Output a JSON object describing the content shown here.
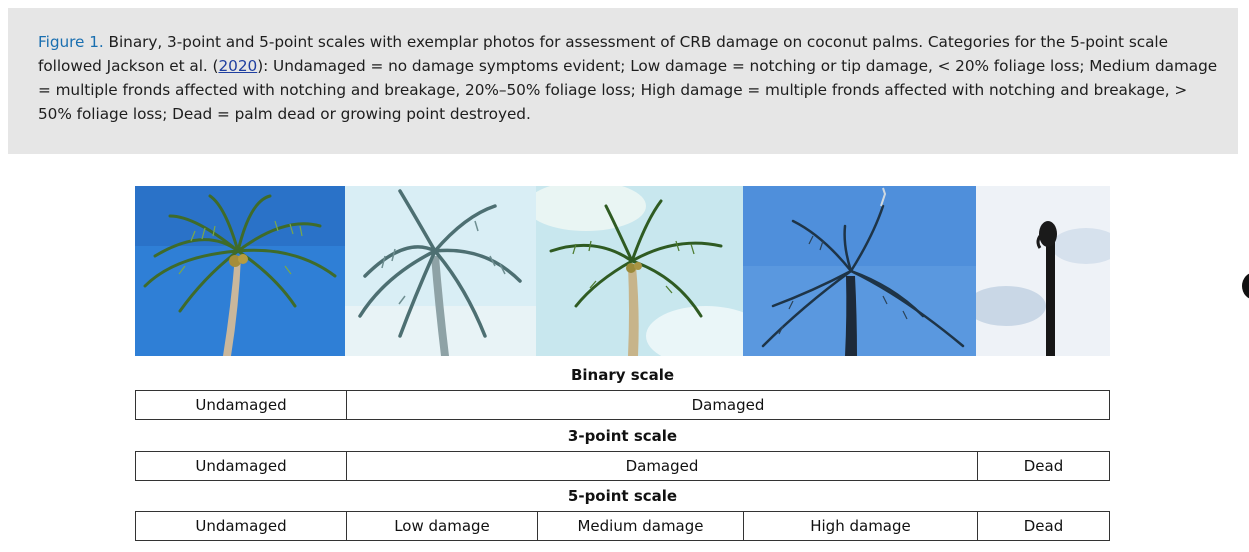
{
  "caption": {
    "figure_label": "Figure 1.",
    "text_part1": " Binary, 3-point and 5-point scales with exemplar photos for assessment of CRB damage on coconut palms. Categories for the 5-point scale followed Jackson et al. (",
    "citation_year": "2020",
    "text_part2": "): Undamaged = no damage symptoms evident; Low damage = notching or tip damage, < 20% foliage loss; Medium damage = multiple fronds affected with notching and breakage, 20%–50% foliage loss; High damage = multiple fronds affected with notching and breakage, > 50% foliage loss; Dead = palm dead or growing point destroyed."
  },
  "photos": [
    {
      "icon": "palm-undamaged-photo",
      "sky": "#2f7fd6"
    },
    {
      "icon": "palm-low-damage-photo",
      "sky": "#d9eef5"
    },
    {
      "icon": "palm-medium-damage-photo",
      "sky": "#c8e7ee"
    },
    {
      "icon": "palm-high-damage-photo",
      "sky": "#5a98df"
    },
    {
      "icon": "palm-dead-photo",
      "sky": "#eef2f7"
    }
  ],
  "scales": {
    "binary": {
      "title": "Binary scale",
      "cells": [
        "Undamaged",
        "Damaged"
      ]
    },
    "three_point": {
      "title": "3-point scale",
      "cells": [
        "Undamaged",
        "Damaged",
        "Dead"
      ]
    },
    "five_point": {
      "title": "5-point scale",
      "cells": [
        "Undamaged",
        "Low damage",
        "Medium damage",
        "High damage",
        "Dead"
      ]
    }
  }
}
